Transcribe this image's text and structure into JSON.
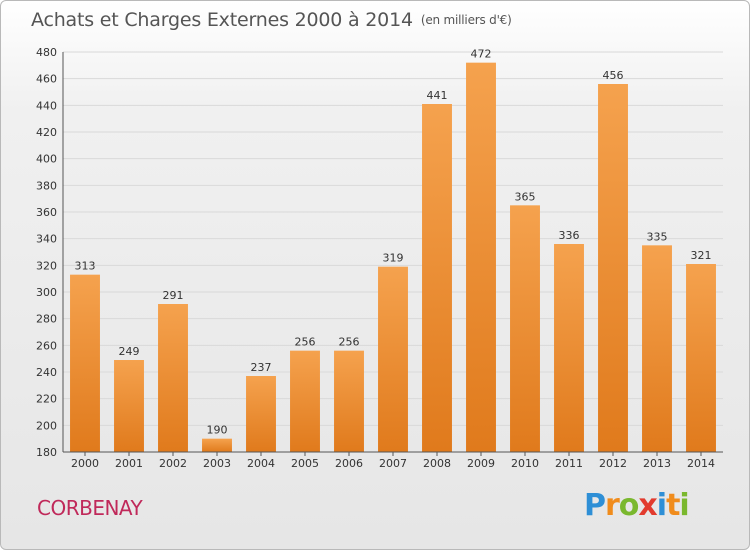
{
  "chart_data": {
    "type": "bar",
    "title": "Achats et Charges Externes 2000 à 2014",
    "unit": "(en milliers d'€)",
    "xlabel": "",
    "ylabel": "",
    "categories": [
      "2000",
      "2001",
      "2002",
      "2003",
      "2004",
      "2005",
      "2006",
      "2007",
      "2008",
      "2009",
      "2010",
      "2011",
      "2012",
      "2013",
      "2014"
    ],
    "values": [
      313,
      249,
      291,
      190,
      237,
      256,
      256,
      319,
      441,
      472,
      365,
      336,
      456,
      335,
      321
    ],
    "ylim": [
      180,
      480
    ],
    "yticks": [
      180,
      200,
      220,
      240,
      260,
      280,
      300,
      320,
      340,
      360,
      380,
      400,
      420,
      440,
      460,
      480
    ],
    "grid": true,
    "bar_color_top": "#f5a24e",
    "bar_color_bottom": "#e07a1c"
  },
  "location": "CORBENAY",
  "logo": {
    "letters": [
      {
        "char": "P",
        "color": "#2e8fd6"
      },
      {
        "char": "r",
        "color": "#f08c1c"
      },
      {
        "char": "o",
        "color": "#7ab82e"
      },
      {
        "char": "x",
        "color": "#e23b2e"
      },
      {
        "char": "i",
        "color": "#2e8fd6"
      },
      {
        "char": "t",
        "color": "#f08c1c"
      },
      {
        "char": "i",
        "color": "#7ab82e"
      }
    ]
  }
}
